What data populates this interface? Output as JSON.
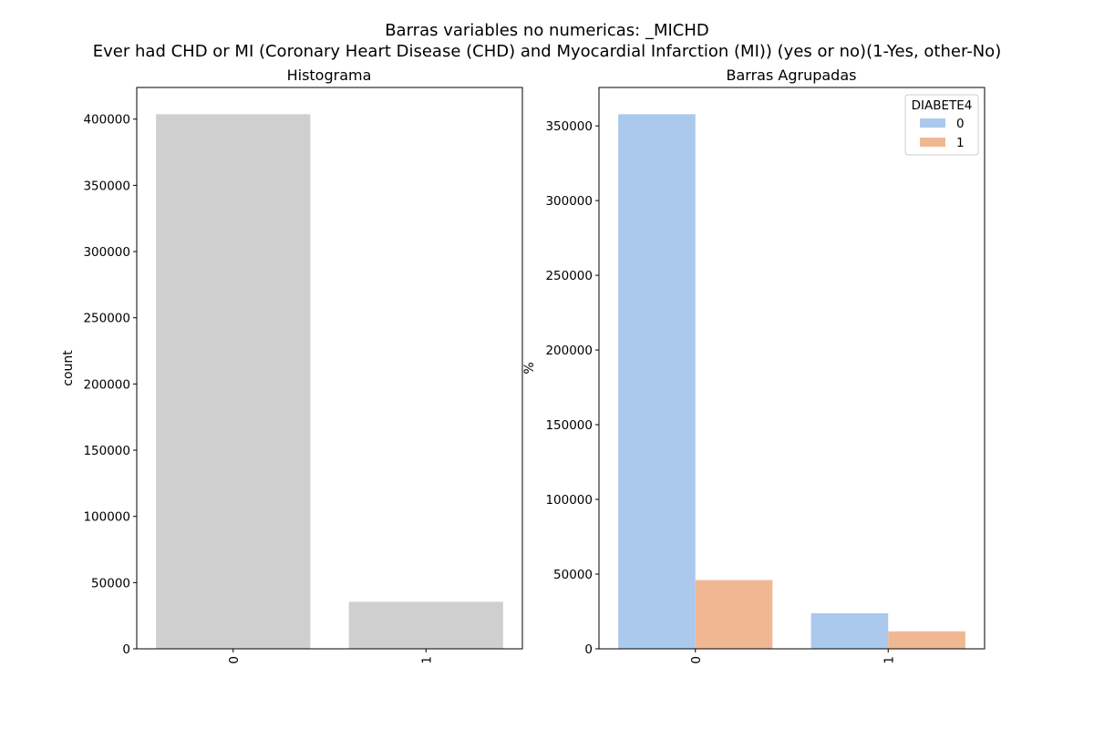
{
  "figure": {
    "suptitle_line1": "Barras variables no numericas: _MICHD",
    "suptitle_line2": "Ever had CHD or MI (Coronary Heart Disease (CHD) and Myocardial Infarction (MI)) (yes or no)(1-Yes, other-No)"
  },
  "chart_data": [
    {
      "type": "bar",
      "title": "Histograma",
      "xlabel": "",
      "ylabel": "count",
      "categories": [
        "0",
        "1"
      ],
      "values": [
        403700,
        35500
      ],
      "ylim": [
        0,
        423900
      ],
      "yticks": [
        0,
        50000,
        100000,
        150000,
        200000,
        250000,
        300000,
        350000,
        400000
      ],
      "xtick_rotation": 90,
      "color": "#cfcfcf",
      "grid": false
    },
    {
      "type": "bar",
      "title": "Barras Agrupadas",
      "xlabel": "",
      "ylabel": "%",
      "categories": [
        "0",
        "1"
      ],
      "series": [
        {
          "name": "0",
          "values": [
            357800,
            23800
          ],
          "color": "#abc9ed"
        },
        {
          "name": "1",
          "values": [
            46000,
            11700
          ],
          "color": "#f0b892"
        }
      ],
      "legend": {
        "title": "DIABETE4",
        "placement": "top-right"
      },
      "ylim": [
        0,
        375700
      ],
      "yticks": [
        0,
        50000,
        100000,
        150000,
        200000,
        250000,
        300000,
        350000
      ],
      "xtick_rotation": 90,
      "grid": false
    }
  ]
}
